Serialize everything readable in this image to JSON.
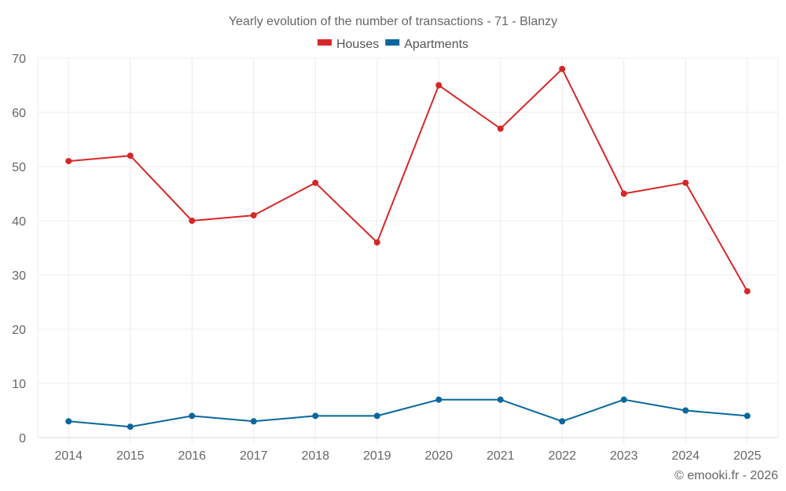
{
  "chart_data": {
    "type": "line",
    "title": "Yearly evolution of the number of transactions - 71 - Blanzy",
    "xlabel": "",
    "ylabel": "",
    "x": [
      "2014",
      "2015",
      "2016",
      "2017",
      "2018",
      "2019",
      "2020",
      "2021",
      "2022",
      "2023",
      "2024",
      "2025"
    ],
    "ylim": [
      0,
      70
    ],
    "yticks": [
      0,
      10,
      20,
      30,
      40,
      50,
      60,
      70
    ],
    "grid": true,
    "legend_position": "top-center",
    "series": [
      {
        "name": "Houses",
        "color": "#d62728",
        "values": [
          51,
          52,
          40,
          41,
          47,
          36,
          65,
          57,
          68,
          45,
          47,
          27
        ]
      },
      {
        "name": "Apartments",
        "color": "#08679c",
        "values": [
          3,
          2,
          4,
          3,
          4,
          4,
          7,
          7,
          3,
          7,
          5,
          4
        ]
      }
    ]
  },
  "credit": "© emooki.fr - 2026"
}
